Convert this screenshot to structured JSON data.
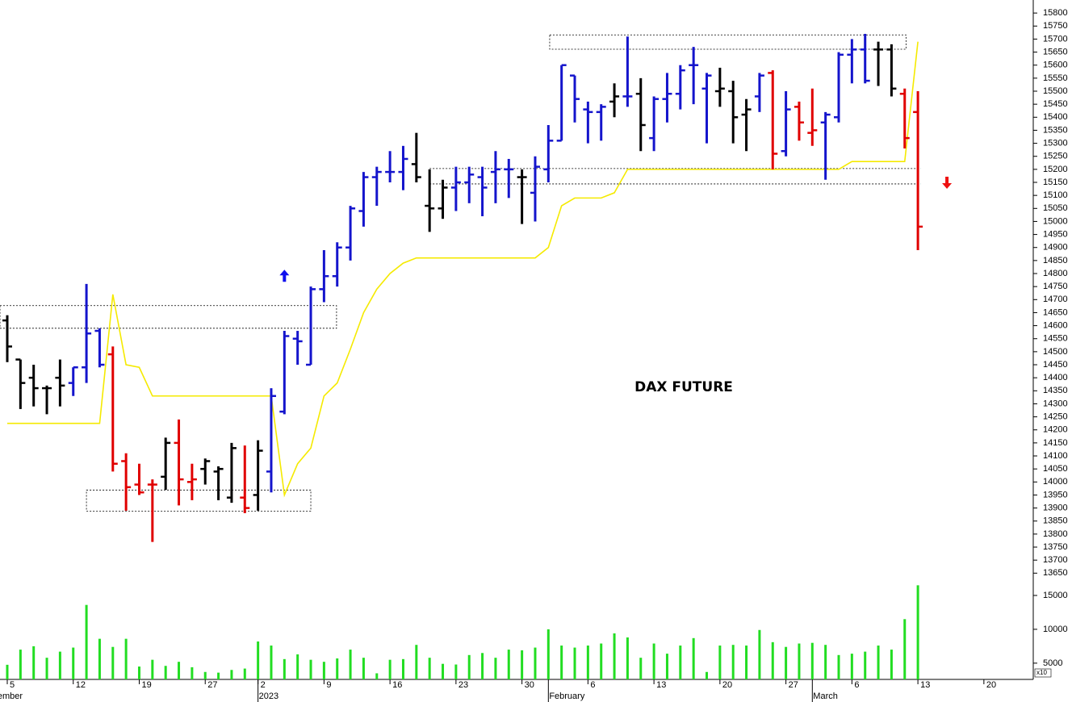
{
  "chart_data": {
    "type": "ohlc",
    "title": "DAX FUTURE",
    "xlim": [
      -0.55,
      77.74
    ],
    "xticks": [
      {
        "value": 0,
        "label": "5"
      },
      {
        "value": 5,
        "label": "12"
      },
      {
        "value": 10,
        "label": "19"
      },
      {
        "value": 15,
        "label": "27"
      },
      {
        "value": 19,
        "label": "2"
      },
      {
        "value": 24,
        "label": "9"
      },
      {
        "value": 29,
        "label": "16"
      },
      {
        "value": 34,
        "label": "23"
      },
      {
        "value": 39,
        "label": "30"
      },
      {
        "value": 44,
        "label": "6"
      },
      {
        "value": 49,
        "label": "13"
      },
      {
        "value": 54,
        "label": "20"
      },
      {
        "value": 59,
        "label": "27"
      },
      {
        "value": 64,
        "label": "6"
      },
      {
        "value": 69,
        "label": "13"
      },
      {
        "value": 74,
        "label": "20"
      }
    ],
    "month_labels": [
      {
        "value": -2,
        "label": "December"
      },
      {
        "value": 19,
        "label": "2023"
      },
      {
        "value": 41,
        "label": "February"
      },
      {
        "value": 61,
        "label": "March"
      }
    ],
    "ylim": [
      13620,
      15850
    ],
    "yticks": [
      13650,
      13700,
      13750,
      13800,
      13850,
      13900,
      13950,
      14000,
      14050,
      14100,
      14150,
      14200,
      14250,
      14300,
      14350,
      14400,
      14450,
      14500,
      14550,
      14600,
      14650,
      14700,
      14750,
      14800,
      14850,
      14900,
      14950,
      15000,
      15050,
      15100,
      15150,
      15200,
      15250,
      15300,
      15350,
      15400,
      15450,
      15500,
      15550,
      15600,
      15650,
      15700,
      15750,
      15800
    ],
    "open": [
      14620,
      14470,
      14400,
      14360,
      14400,
      14380,
      14440,
      14580,
      14490,
      14080,
      13990,
      13990,
      14020,
      14150,
      14000,
      14050,
      14040,
      13940,
      13940,
      13950,
      14040,
      14270,
      14550,
      14450,
      14740,
      14790,
      14900,
      15040,
      15170,
      15190,
      15190,
      15220,
      15060,
      15050,
      15130,
      15150,
      15170,
      15190,
      15200,
      15170,
      15110,
      15200,
      15310,
      15560,
      15430,
      15420,
      15460,
      15480,
      15490,
      15320,
      15470,
      15490,
      15600,
      15510,
      15500,
      15500,
      15410,
      15480,
      15570,
      15270,
      15440,
      15340,
      15380,
      15400,
      15640,
      15660,
      15660,
      15660,
      15490,
      15420
    ],
    "high": [
      14640,
      14470,
      14450,
      14370,
      14470,
      14440,
      14760,
      14590,
      14520,
      14110,
      14070,
      14010,
      14170,
      14240,
      14070,
      14090,
      14060,
      14150,
      14140,
      14160,
      14360,
      14580,
      14580,
      14750,
      14890,
      14920,
      15060,
      15190,
      15210,
      15270,
      15290,
      15340,
      15200,
      15160,
      15210,
      15210,
      15210,
      15270,
      15240,
      15200,
      15250,
      15370,
      15600,
      15560,
      15460,
      15450,
      15530,
      15710,
      15550,
      15480,
      15570,
      15600,
      15670,
      15570,
      15590,
      15540,
      15470,
      15570,
      15580,
      15500,
      15460,
      15510,
      15420,
      15650,
      15700,
      15720,
      15690,
      15680,
      15510,
      15500
    ],
    "low": [
      14460,
      14280,
      14290,
      14260,
      14290,
      14330,
      14380,
      14440,
      14040,
      13890,
      13950,
      13770,
      13970,
      13910,
      13930,
      13990,
      13930,
      13920,
      13880,
      13890,
      13960,
      14260,
      14450,
      14450,
      14690,
      14750,
      14850,
      14980,
      15060,
      15150,
      15120,
      15150,
      14960,
      15010,
      15040,
      15070,
      15020,
      15070,
      15090,
      14990,
      15000,
      15150,
      15310,
      15380,
      15300,
      15310,
      15400,
      15440,
      15270,
      15270,
      15380,
      15430,
      15450,
      15300,
      15440,
      15300,
      15270,
      15420,
      15200,
      15250,
      15310,
      15290,
      15160,
      15380,
      15530,
      15530,
      15520,
      15480,
      15280,
      14890
    ],
    "close": [
      14520,
      14380,
      14360,
      14360,
      14370,
      14440,
      14570,
      14450,
      14070,
      13980,
      13960,
      13990,
      14150,
      14010,
      14010,
      14080,
      14050,
      14130,
      13900,
      14120,
      14330,
      14560,
      14540,
      14740,
      14790,
      14900,
      15050,
      15170,
      15190,
      15190,
      15240,
      15170,
      15050,
      15130,
      15150,
      15180,
      15130,
      15200,
      15200,
      15170,
      15210,
      15310,
      15600,
      15470,
      15420,
      15440,
      15480,
      15480,
      15370,
      15470,
      15490,
      15580,
      15600,
      15560,
      15510,
      15400,
      15430,
      15560,
      15260,
      15430,
      15380,
      15350,
      15410,
      15640,
      15660,
      15540,
      15660,
      15510,
      15320,
      14980
    ],
    "colors": [
      "#000000",
      "#000000",
      "#000000",
      "#000000",
      "#000000",
      "#1414cc",
      "#1414cc",
      "#1414cc",
      "#e00000",
      "#e00000",
      "#e00000",
      "#e00000",
      "#000000",
      "#e00000",
      "#e00000",
      "#000000",
      "#000000",
      "#000000",
      "#e00000",
      "#000000",
      "#1414cc",
      "#1414cc",
      "#1414cc",
      "#1414cc",
      "#1414cc",
      "#1414cc",
      "#1414cc",
      "#1414cc",
      "#1414cc",
      "#1414cc",
      "#1414cc",
      "#000000",
      "#000000",
      "#000000",
      "#1414cc",
      "#1414cc",
      "#1414cc",
      "#1414cc",
      "#1414cc",
      "#000000",
      "#1414cc",
      "#1414cc",
      "#1414cc",
      "#1414cc",
      "#1414cc",
      "#1414cc",
      "#000000",
      "#1414cc",
      "#000000",
      "#1414cc",
      "#1414cc",
      "#1414cc",
      "#1414cc",
      "#1414cc",
      "#000000",
      "#000000",
      "#000000",
      "#1414cc",
      "#e00000",
      "#1414cc",
      "#e00000",
      "#e00000",
      "#1414cc",
      "#1414cc",
      "#1414cc",
      "#1414cc",
      "#000000",
      "#000000",
      "#e00000",
      "#e00000"
    ],
    "stop_line": {
      "color": "#f5ea00",
      "values": [
        14225,
        14225,
        14225,
        14225,
        14225,
        14225,
        14225,
        14225,
        14720,
        14450,
        14440,
        14330,
        14330,
        14330,
        14330,
        14330,
        14330,
        14330,
        14330,
        14330,
        14330,
        13950,
        14070,
        14130,
        14330,
        14380,
        14510,
        14650,
        14740,
        14800,
        14840,
        14860,
        14860,
        14860,
        14860,
        14860,
        14860,
        14860,
        14860,
        14860,
        14860,
        14900,
        15060,
        15090,
        15090,
        15090,
        15110,
        15200,
        15200,
        15200,
        15200,
        15200,
        15200,
        15200,
        15200,
        15200,
        15200,
        15200,
        15200,
        15200,
        15200,
        15200,
        15200,
        15200,
        15230,
        15230,
        15230,
        15230,
        15230,
        15690
      ]
    },
    "zones": [
      {
        "x": [
          -0.55,
          24.95
        ],
        "y": [
          14590,
          14677
        ]
      },
      {
        "x": [
          6,
          23
        ],
        "y": [
          13888,
          13969
        ]
      },
      {
        "x": [
          41.1,
          68.1
        ],
        "y": [
          15661,
          15716
        ]
      }
    ],
    "levels": {
      "x": [
        32,
        69.2
      ],
      "values": [
        15144,
        15203
      ]
    },
    "signals": [
      {
        "x": 21,
        "y": 14790,
        "direction": "up",
        "color": "#1010ee"
      },
      {
        "x": 71.2,
        "y": 15150,
        "direction": "down",
        "color": "#ee1010"
      }
    ],
    "volume": {
      "color": "#22dd22",
      "ylim": [
        2600,
        16900
      ],
      "yticks": [
        5000,
        10000,
        15000
      ],
      "unit": "x10",
      "values": [
        4760,
        7000,
        7500,
        5800,
        6700,
        7300,
        13600,
        8600,
        7400,
        8600,
        4500,
        5500,
        4600,
        5200,
        4400,
        3700,
        3600,
        4000,
        4200,
        8200,
        7600,
        5600,
        6300,
        5500,
        5200,
        5700,
        7000,
        5800,
        3500,
        5500,
        5600,
        7700,
        5800,
        4900,
        4800,
        6200,
        6500,
        5800,
        7000,
        6900,
        7300,
        10000,
        7600,
        7300,
        7600,
        7900,
        9400,
        8800,
        5800,
        7900,
        6400,
        7600,
        8700,
        3700,
        7600,
        7700,
        7600,
        9900,
        8100,
        7400,
        7900,
        8000,
        7700,
        6200,
        6400,
        6700,
        7600,
        7000,
        11500,
        16500
      ]
    }
  }
}
